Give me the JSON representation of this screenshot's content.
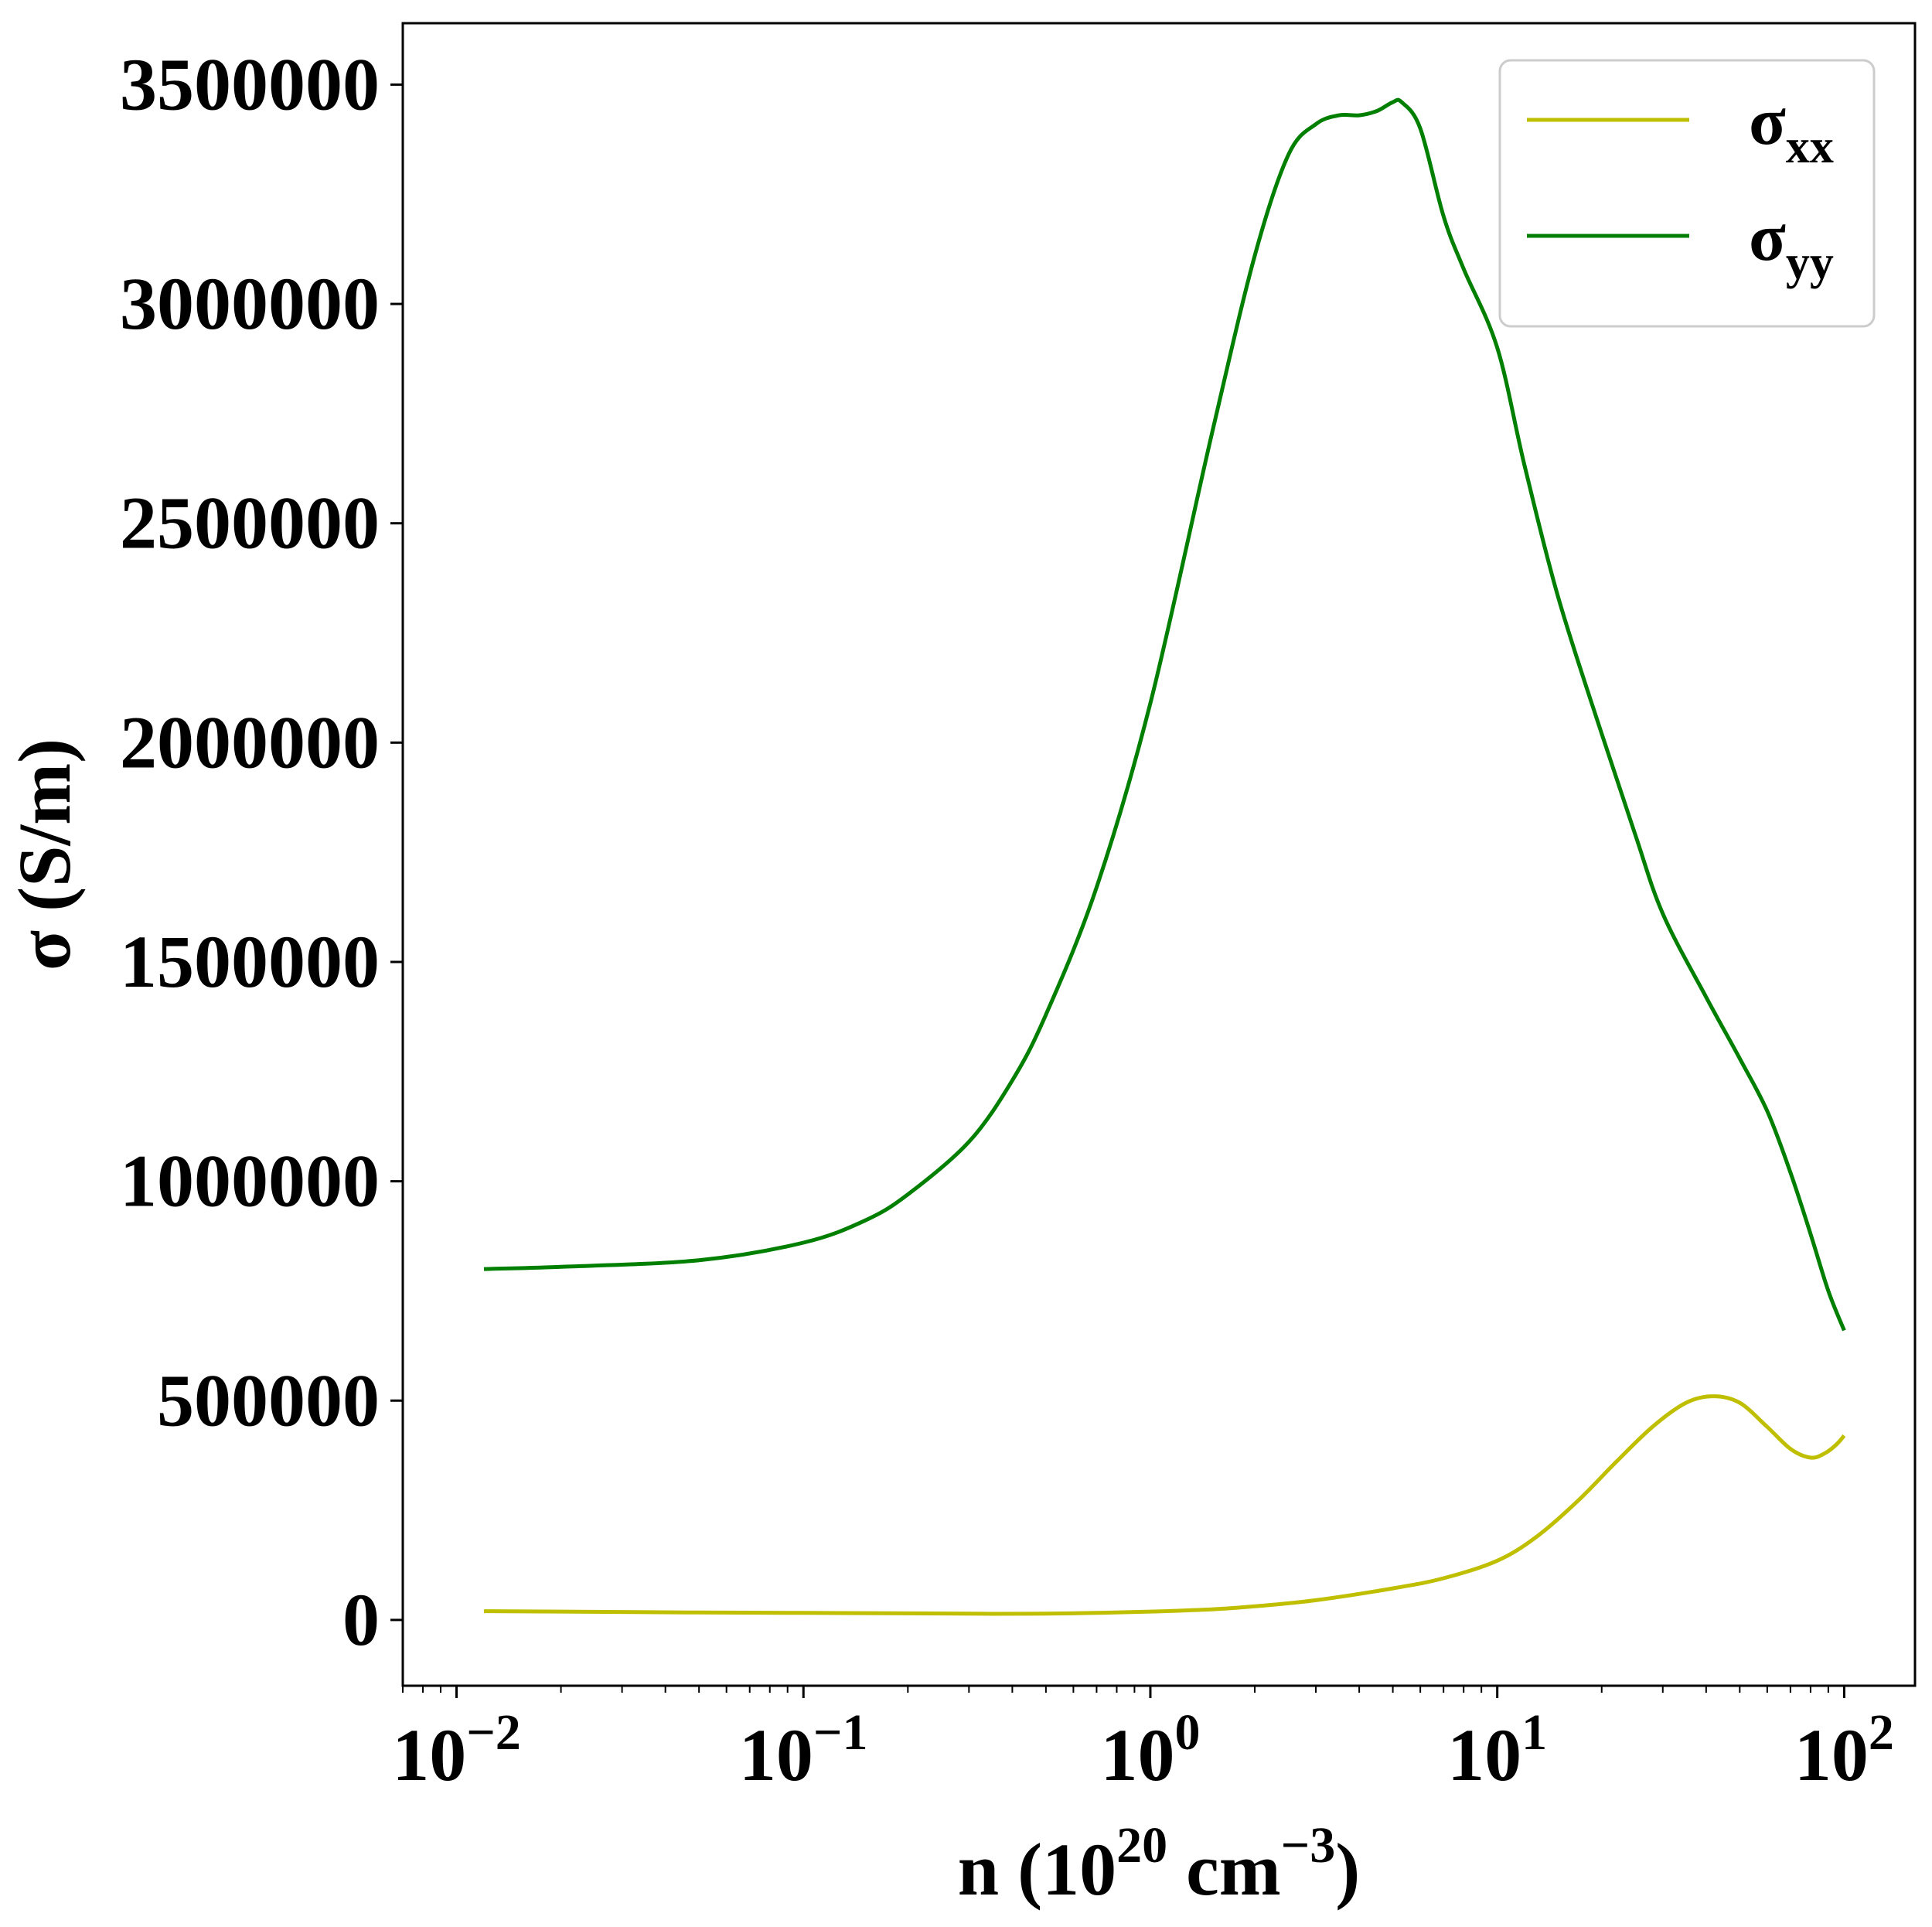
{
  "chart_data": {
    "type": "line",
    "title": "",
    "xlabel": {
      "main": "n (10",
      "sup": "20",
      "mid": " cm",
      "sup2": "−3",
      "end": ")"
    },
    "ylabel": "σ (S/m)",
    "xscale": "log",
    "xlim": [
      0.007,
      160
    ],
    "ylim": [
      -150000,
      3640000
    ],
    "grid": false,
    "legend_position": "top-right",
    "x_ticks": [
      {
        "value": 0.01,
        "base": "10",
        "exp": "−2"
      },
      {
        "value": 0.1,
        "base": "10",
        "exp": "−1"
      },
      {
        "value": 1,
        "base": "10",
        "exp": "0"
      },
      {
        "value": 10,
        "base": "10",
        "exp": "1"
      },
      {
        "value": 100,
        "base": "10",
        "exp": "2"
      }
    ],
    "y_ticks": [
      {
        "value": 0,
        "label": "0"
      },
      {
        "value": 500000,
        "label": "500000"
      },
      {
        "value": 1000000,
        "label": "1000000"
      },
      {
        "value": 1500000,
        "label": "1500000"
      },
      {
        "value": 2000000,
        "label": "2000000"
      },
      {
        "value": 2500000,
        "label": "2500000"
      },
      {
        "value": 3000000,
        "label": "3000000"
      },
      {
        "value": 3500000,
        "label": "3500000"
      }
    ],
    "series": [
      {
        "name": "σxx",
        "legend_base": "σ",
        "legend_sub": "xx",
        "color": "#bfbf00",
        "x": [
          0.012,
          0.02,
          0.05,
          0.1,
          0.2,
          0.35,
          0.5,
          0.7,
          1.0,
          1.5,
          2.0,
          3.0,
          5.0,
          7.0,
          10,
          13,
          17,
          22,
          28,
          35,
          42,
          50,
          60,
          70,
          80,
          88,
          95,
          100
        ],
        "y": [
          20000,
          19000,
          17000,
          16000,
          15000,
          14000,
          14500,
          16000,
          19000,
          24000,
          31000,
          45000,
          72000,
          95000,
          135000,
          190000,
          270000,
          360000,
          440000,
          495000,
          510000,
          495000,
          440000,
          390000,
          370000,
          380000,
          400000,
          420000
        ]
      },
      {
        "name": "σyy",
        "legend_base": "σ",
        "legend_sub": "yy",
        "color": "#007f00",
        "x": [
          0.012,
          0.02,
          0.05,
          0.1,
          0.15,
          0.2,
          0.3,
          0.4,
          0.5,
          0.7,
          1.0,
          1.5,
          2.0,
          2.5,
          3.0,
          3.5,
          4.0,
          4.5,
          5.0,
          5.3,
          6.0,
          7.0,
          8.0,
          10,
          12,
          15,
          20,
          25,
          30,
          40,
          50,
          60,
          70,
          80,
          90,
          100
        ],
        "y": [
          800000,
          805000,
          820000,
          860000,
          910000,
          970000,
          1090000,
          1230000,
          1380000,
          1670000,
          2090000,
          2700000,
          3110000,
          3340000,
          3410000,
          3430000,
          3430000,
          3440000,
          3460000,
          3460000,
          3400000,
          3200000,
          3080000,
          2900000,
          2630000,
          2330000,
          2020000,
          1790000,
          1610000,
          1420000,
          1280000,
          1160000,
          1020000,
          880000,
          750000,
          660000
        ]
      }
    ]
  }
}
